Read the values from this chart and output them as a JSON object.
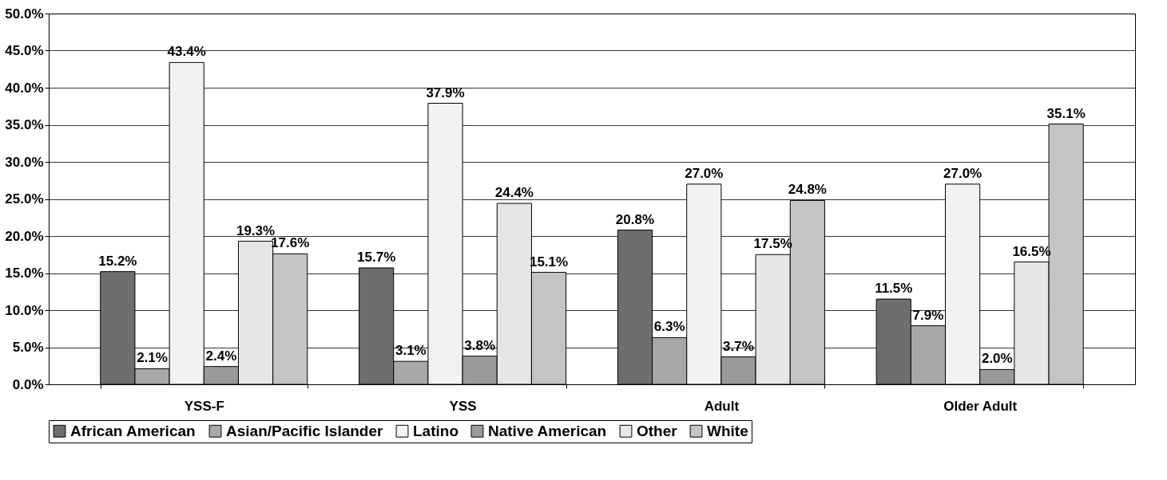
{
  "chart_data": {
    "type": "bar",
    "categories": [
      "YSS-F",
      "YSS",
      "Adult",
      "Older Adult"
    ],
    "series": [
      {
        "name": "African American",
        "color": "#6e6e6e",
        "values": [
          15.2,
          15.7,
          20.8,
          11.5
        ],
        "value_labels": [
          "15.2%",
          "15.7%",
          "20.8%",
          "11.5%"
        ]
      },
      {
        "name": "Asian/Pacific Islander",
        "color": "#a8a8a8",
        "values": [
          2.1,
          3.1,
          6.3,
          7.9
        ],
        "value_labels": [
          "2.1%",
          "3.1%",
          "6.3%",
          "7.9%"
        ]
      },
      {
        "name": "Latino",
        "color": "#f2f2f2",
        "values": [
          43.4,
          37.9,
          27.0,
          27.0
        ],
        "value_labels": [
          "43.4%",
          "37.9%",
          "27.0%",
          "27.0%"
        ]
      },
      {
        "name": "Native American",
        "color": "#9a9a9a",
        "values": [
          2.4,
          3.8,
          3.7,
          2.0
        ],
        "value_labels": [
          "2.4%",
          "3.8%",
          "3.7%",
          "2.0%"
        ]
      },
      {
        "name": "Other",
        "color": "#e6e6e6",
        "values": [
          19.3,
          24.4,
          17.5,
          16.5
        ],
        "value_labels": [
          "19.3%",
          "24.4%",
          "17.5%",
          "16.5%"
        ]
      },
      {
        "name": "White",
        "color": "#c4c4c4",
        "values": [
          17.6,
          15.1,
          24.8,
          35.1
        ],
        "value_labels": [
          "17.6%",
          "15.1%",
          "24.8%",
          "35.1%"
        ]
      }
    ],
    "ylim": [
      0,
      50
    ],
    "yticks": [
      {
        "value": 0,
        "label": "0.0%"
      },
      {
        "value": 5,
        "label": "5.0%"
      },
      {
        "value": 10,
        "label": "10.0%"
      },
      {
        "value": 15,
        "label": "15.0%"
      },
      {
        "value": 20,
        "label": "20.0%"
      },
      {
        "value": 25,
        "label": "25.0%"
      },
      {
        "value": 30,
        "label": "30.0%"
      },
      {
        "value": 35,
        "label": "35.0%"
      },
      {
        "value": 40,
        "label": "40.0%"
      },
      {
        "value": 45,
        "label": "45.0%"
      },
      {
        "value": 50,
        "label": "50.0%"
      }
    ],
    "grid": "y",
    "legend": "bottom"
  }
}
